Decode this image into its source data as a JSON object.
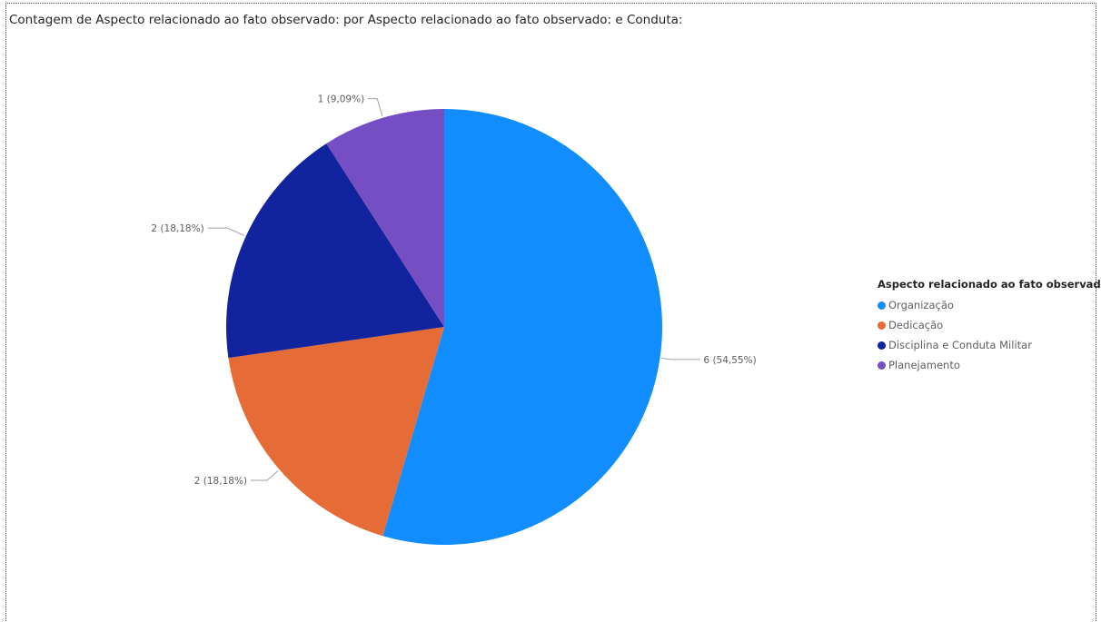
{
  "chart_data": {
    "type": "pie",
    "title": "Contagem de Aspecto relacionado ao fato observado: por Aspecto relacionado ao fato observado: e Conduta:",
    "legend_title": "Aspecto relacionado ao fato observado:",
    "legend_position": "right",
    "slices": [
      {
        "label": "Organização",
        "value": 6,
        "percent": "54,55%",
        "data_label": "6 (54,55%)",
        "color": "#118DFF"
      },
      {
        "label": "Dedicação",
        "value": 2,
        "percent": "18,18%",
        "data_label": "2 (18,18%)",
        "color": "#E66C37"
      },
      {
        "label": "Disciplina e Conduta Militar",
        "value": 2,
        "percent": "18,18%",
        "data_label": "2 (18,18%)",
        "color": "#12239E"
      },
      {
        "label": "Planejamento",
        "value": 1,
        "percent": "9,09%",
        "data_label": "1 (9,09%)",
        "color": "#744EC2"
      }
    ]
  },
  "colors": {
    "leader_line": "#a19f9d",
    "label_text": "#605e5c"
  }
}
